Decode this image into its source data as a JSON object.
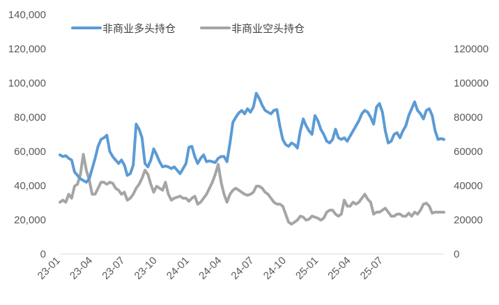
{
  "chart_data": {
    "type": "line",
    "y_left": {
      "ticks": [
        "0",
        "20,000",
        "40,000",
        "60,000",
        "80,000",
        "100,000",
        "120,000",
        "140,000"
      ],
      "ylim": [
        0,
        140000
      ]
    },
    "y_right": {
      "ticks": [
        "0",
        "20000",
        "40000",
        "60000",
        "80000",
        "100000",
        "120000"
      ],
      "ylim": [
        0,
        120000
      ]
    },
    "x_ticks": [
      "23-01",
      "23-04",
      "23-07",
      "23-10",
      "24-01",
      "24-04",
      "24-07",
      "24-10",
      "25-01",
      "25-04",
      "25-07"
    ],
    "legend_position": "top-left",
    "grid": false,
    "series": [
      {
        "name": "非商业多头持仓",
        "axis": "left",
        "color": "#5B9BD5",
        "values": [
          58000,
          57000,
          57500,
          56000,
          55000,
          48000,
          46000,
          44000,
          43000,
          42000,
          44000,
          50000,
          56000,
          63000,
          67000,
          68000,
          69500,
          60000,
          57000,
          55000,
          53000,
          55000,
          52000,
          46000,
          47000,
          52000,
          76000,
          73000,
          68000,
          53000,
          51000,
          55000,
          61500,
          58000,
          54000,
          51000,
          51500,
          51000,
          50000,
          51000,
          49000,
          47000,
          50000,
          53000,
          62500,
          63000,
          57000,
          53000,
          56000,
          58000,
          54000,
          54500,
          54000,
          53500,
          56000,
          57000,
          57000,
          54000,
          65000,
          77000,
          80000,
          82500,
          84000,
          82000,
          85000,
          83000,
          86000,
          94000,
          91000,
          87000,
          84000,
          83000,
          82000,
          84000,
          84500,
          75000,
          67000,
          64000,
          63000,
          65000,
          64000,
          62000,
          72000,
          79000,
          75000,
          72000,
          70000,
          81000,
          78000,
          73000,
          70000,
          66000,
          65000,
          67000,
          73000,
          68000,
          67000,
          68000,
          66000,
          69000,
          72000,
          75000,
          78000,
          82000,
          84000,
          83000,
          80000,
          76000,
          86000,
          88000,
          83000,
          72000,
          65000,
          66000,
          70000,
          71000,
          68000,
          72000,
          75000,
          81000,
          85000,
          89000,
          84000,
          82000,
          79000,
          84000,
          85000,
          81000,
          72000,
          67000,
          67500,
          67000
        ]
      },
      {
        "name": "非商业空头持仓",
        "axis": "right",
        "color": "#A5A5A5",
        "values": [
          26000,
          27000,
          26000,
          30000,
          28000,
          34000,
          35000,
          40000,
          50000,
          42000,
          37000,
          30000,
          30000,
          33000,
          36000,
          36000,
          35000,
          36000,
          35500,
          33000,
          32000,
          30000,
          31000,
          27000,
          28000,
          30000,
          33000,
          35000,
          38000,
          42000,
          40000,
          35000,
          31000,
          34000,
          33000,
          32000,
          36000,
          30000,
          27000,
          28000,
          28500,
          29000,
          28000,
          28000,
          26500,
          28000,
          29000,
          25000,
          26000,
          28000,
          30000,
          33000,
          36000,
          40000,
          45000,
          36000,
          30000,
          26000,
          30000,
          32000,
          33000,
          32000,
          31000,
          30000,
          29500,
          30000,
          31000,
          34000,
          34000,
          33000,
          31000,
          30000,
          28000,
          26000,
          25000,
          25000,
          24000,
          20000,
          16000,
          15000,
          16000,
          17000,
          19000,
          18500,
          17000,
          17500,
          19000,
          18500,
          18000,
          17000,
          18000,
          21000,
          22000,
          22000,
          20000,
          19000,
          20000,
          27000,
          24000,
          24000,
          26000,
          25000,
          26000,
          28000,
          30000,
          27500,
          26000,
          20000,
          21000,
          21000,
          22000,
          23000,
          21000,
          19000,
          19000,
          20000,
          20000,
          19000,
          19000,
          20500,
          19000,
          21000,
          20000,
          22000,
          25000,
          25500,
          24000,
          20500,
          21000,
          21000,
          21000,
          21000
        ]
      }
    ]
  }
}
